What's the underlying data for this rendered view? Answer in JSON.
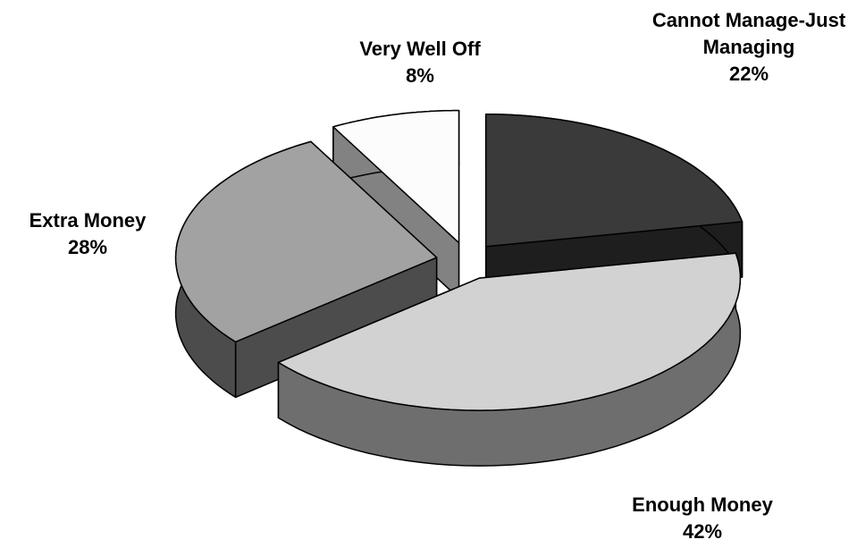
{
  "chart_data": {
    "type": "pie",
    "categories": [
      "Cannot Manage-Just Managing",
      "Enough Money",
      "Extra Money",
      "Very Well Off"
    ],
    "values": [
      22,
      42,
      28,
      8
    ],
    "value_labels": [
      "22%",
      "42%",
      "28%",
      "8%"
    ],
    "colors": [
      "#3a3a3a",
      "#d2d2d2",
      "#a2a2a2",
      "#fcfcfc"
    ],
    "side_colors": [
      "#1e1e1e",
      "#6e6e6e",
      "#4c4c4c",
      "#828282"
    ]
  }
}
